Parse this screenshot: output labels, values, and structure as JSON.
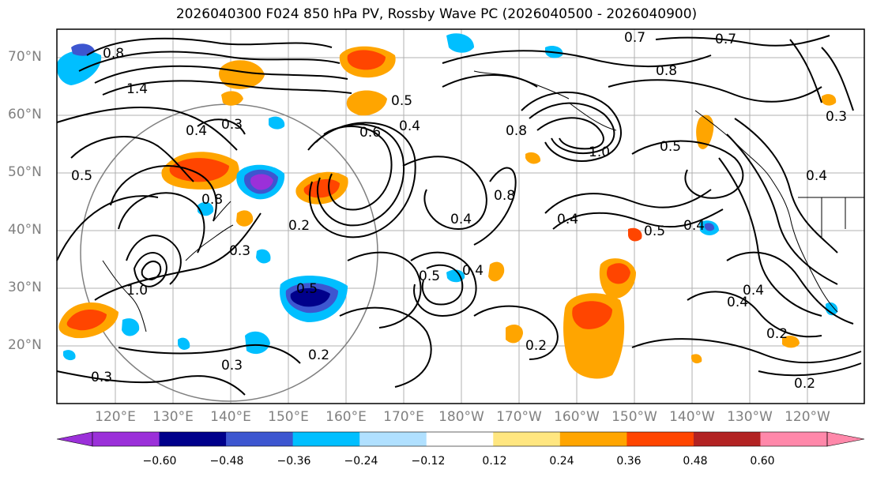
{
  "title": "2026040300 F024 850 hPa PV, Rossby Wave PC (2026040500 - 2026040900)",
  "lat_labels": [
    "70°N",
    "60°N",
    "50°N",
    "40°N",
    "30°N",
    "20°N"
  ],
  "lon_labels": [
    "120°E",
    "130°E",
    "140°E",
    "150°E",
    "160°E",
    "170°E",
    "180°W",
    "170°W",
    "160°W",
    "150°W",
    "140°W",
    "130°W",
    "120°W"
  ],
  "contour_labels": [
    "0.8",
    "1.4",
    "0.4",
    "0.3",
    "0.5",
    "0.8",
    "0.2",
    "0.3",
    "0.6",
    "0.4",
    "0.5",
    "0.4",
    "0.8",
    "1.0",
    "0.5",
    "0.8",
    "0.4",
    "0.5",
    "0.4",
    "0.5",
    "0.4",
    "0.4",
    "0.2",
    "0.4",
    "0.2",
    "0.3",
    "0.2",
    "0.7",
    "0.7",
    "0.8",
    "0.3",
    "0.4",
    "1.0",
    "0.3",
    "0.5",
    "0.2"
  ],
  "colorbar": {
    "ticks": [
      "−0.60",
      "−0.48",
      "−0.36",
      "−0.24",
      "−0.12",
      "0.12",
      "0.24",
      "0.36",
      "0.48",
      "0.60"
    ],
    "colors": [
      "#9b30d9",
      "#00008b",
      "#3d56d0",
      "#00bfff",
      "#b0e0ff",
      "#ffffff",
      "#ffe680",
      "#ffa500",
      "#ff4500",
      "#b22222",
      "#ff88aa",
      "#ff88aa"
    ]
  },
  "shading_colors": {
    "neg_strong": "#2a1f9c",
    "neg_mid": "#3d56d0",
    "neg_light": "#00bfff",
    "pos_light": "#ffa500",
    "pos_mid": "#ff4500",
    "pos_strong": "#b22222"
  }
}
